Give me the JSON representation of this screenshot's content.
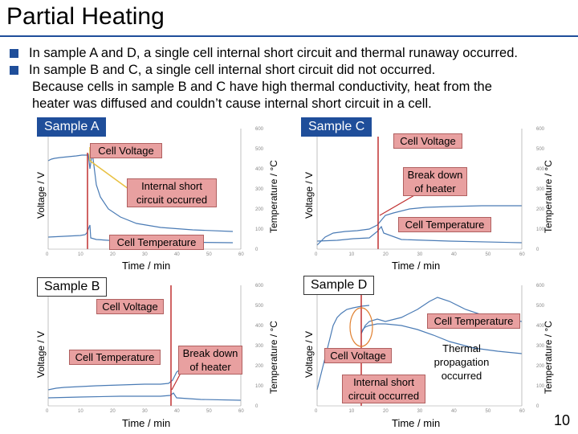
{
  "title": "Partial Heating",
  "bullets": [
    "In sample A and D, a single cell internal short circuit and thermal runaway occurred.",
    "In sample B and C, a single cell internal short circuit did not occurred."
  ],
  "continuation": [
    "Because cells in sample B and C have high thermal conductivity, heat from the",
    "heater was diffused and couldn’t cause internal short circuit in a cell."
  ],
  "page_number": "10",
  "axes": {
    "voltage": "Voltage / V",
    "temperature": "Temperature / °C",
    "time": "Time / min"
  },
  "panels": {
    "A": {
      "tag": "Sample A",
      "voltage_label": "Cell Voltage",
      "event_label": "Internal short circuit occurred",
      "temp_label": "Cell Temperature"
    },
    "C": {
      "tag": "Sample C",
      "voltage_label": "Cell Voltage",
      "event_label": "Break down of heater",
      "temp_label": "Cell Temperature"
    },
    "B": {
      "tag": "Sample B",
      "voltage_label": "Cell Voltage",
      "temp_label": "Cell Temperature",
      "event_label": "Break down of heater"
    },
    "D": {
      "tag": "Sample D",
      "temp_label": "Cell Temperature",
      "voltage_label": "Cell Voltage",
      "propagation_label": "Thermal propagation occurred",
      "event_label": "Internal short circuit occurred"
    }
  },
  "ticks": {
    "x": [
      "0",
      "10",
      "20",
      "30",
      "40",
      "50",
      "60"
    ],
    "temp": [
      "0",
      "100",
      "200",
      "300",
      "400",
      "500",
      "600"
    ]
  },
  "colors": {
    "accent": "#1f4e9a",
    "callout": "#e8a0a0",
    "curve": "#4a7bb5",
    "marker": "#c03030"
  }
}
